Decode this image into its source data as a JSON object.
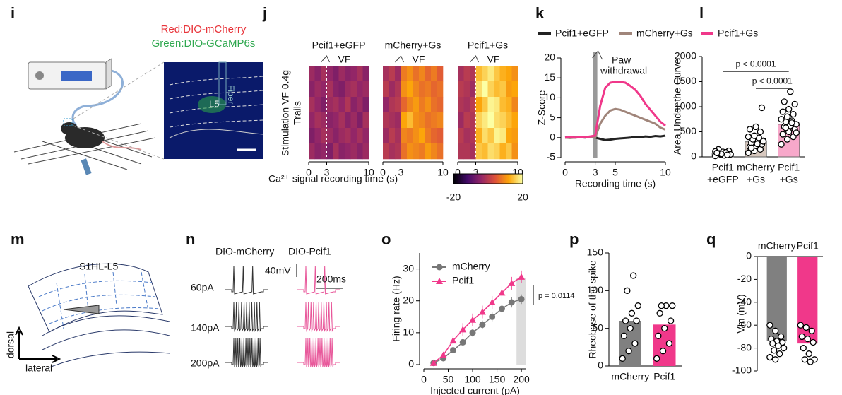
{
  "panel_labels": [
    "i",
    "j",
    "k",
    "l",
    "m",
    "n",
    "o",
    "p",
    "q"
  ],
  "panel_i": {
    "red_label": "Red:DIO-mCherry",
    "green_label": "Green:DIO-GCaMP6s",
    "fiber": "Fiber",
    "layer": "L5"
  },
  "panel_m": {
    "region": "S1HL-L5",
    "dorsal": "dorsal",
    "lateral": "lateral"
  },
  "panel_n": {
    "columns": [
      "DIO-mCherry",
      "DIO-Pcif1"
    ],
    "currents": [
      "60pA",
      "140pA",
      "200pA"
    ],
    "scale_v": "40mV",
    "scale_t": "200ms"
  },
  "chart_data": [
    {
      "type": "heatmap",
      "ylabel": [
        "Stimulation  VF 0.4g",
        "Trails"
      ],
      "xlabel": "Ca²⁺ signal recording time (s)",
      "marker": "VF",
      "xlim": [
        0,
        10
      ],
      "xticks": [
        0,
        3,
        10
      ],
      "zlim": [
        -20,
        20
      ],
      "colorbar_ticks": [
        -20,
        20
      ],
      "panels": [
        {
          "title": "Pcif1+eGFP",
          "z": [
            [
              -3,
              -5,
              -2,
              -4,
              -6,
              -3,
              -5,
              -4,
              -2,
              -5
            ],
            [
              -5,
              -3,
              -4,
              -2,
              -5,
              -6,
              -3,
              -2,
              -4,
              -3
            ],
            [
              -2,
              -4,
              -6,
              -3,
              -2,
              -4,
              -1,
              -5,
              -3,
              -6
            ],
            [
              -4,
              -2,
              -3,
              -5,
              -4,
              -2,
              -5,
              -3,
              -6,
              -2
            ],
            [
              -6,
              -4,
              -2,
              -3,
              -5,
              -3,
              -2,
              -4,
              -2,
              -4
            ],
            [
              -3,
              -5,
              -4,
              -6,
              -2,
              -5,
              -4,
              -3,
              -5,
              -3
            ]
          ]
        },
        {
          "title": "mCherry+Gs",
          "z": [
            [
              -2,
              0,
              -3,
              8,
              10,
              7,
              9,
              6,
              8,
              5
            ],
            [
              0,
              -3,
              -1,
              10,
              12,
              9,
              7,
              8,
              6,
              7
            ],
            [
              -4,
              -1,
              0,
              6,
              9,
              11,
              8,
              10,
              7,
              6
            ],
            [
              -1,
              -2,
              -3,
              12,
              14,
              10,
              9,
              7,
              8,
              9
            ],
            [
              -3,
              0,
              -2,
              9,
              8,
              10,
              12,
              8,
              6,
              5
            ],
            [
              0,
              -2,
              -1,
              7,
              10,
              9,
              8,
              11,
              9,
              7
            ]
          ]
        },
        {
          "title": "Pcif1+Gs",
          "z": [
            [
              -2,
              0,
              -1,
              14,
              16,
              18,
              15,
              13,
              12,
              10
            ],
            [
              0,
              -1,
              -3,
              17,
              20,
              16,
              14,
              15,
              11,
              12
            ],
            [
              -1,
              -2,
              0,
              12,
              15,
              19,
              18,
              14,
              13,
              9
            ],
            [
              -3,
              0,
              -1,
              16,
              18,
              20,
              17,
              16,
              14,
              12
            ],
            [
              0,
              -2,
              -1,
              13,
              17,
              15,
              19,
              18,
              12,
              11
            ],
            [
              -1,
              -1,
              -2,
              15,
              14,
              17,
              16,
              13,
              15,
              10
            ]
          ]
        }
      ]
    },
    {
      "type": "line",
      "ylabel": "Z-Score",
      "xlabel": "Recording time (s)",
      "annotation": [
        "Paw",
        "withdrawal"
      ],
      "stimulus": 3,
      "xlim": [
        0,
        10
      ],
      "xticks": [
        0,
        3,
        5,
        10
      ],
      "ylim": [
        -5,
        20
      ],
      "yticks": [
        -5,
        0,
        5,
        10,
        15,
        20
      ],
      "x": [
        0,
        0.5,
        1,
        1.5,
        2,
        2.5,
        3,
        3.5,
        4,
        4.5,
        5,
        5.5,
        6,
        6.5,
        7,
        7.5,
        8,
        8.5,
        9,
        9.5,
        10
      ],
      "series": [
        {
          "name": "Pcif1+eGFP",
          "color": "#222222",
          "values": [
            0,
            0.1,
            0,
            0.1,
            0,
            0.2,
            0,
            -0.3,
            -0.6,
            -0.5,
            -0.3,
            -0.2,
            -0.1,
            0,
            0.2,
            0.1,
            0.3,
            0.2,
            0.4,
            0.3,
            0.5
          ]
        },
        {
          "name": "mCherry+Gs",
          "color": "#a0857a",
          "values": [
            0,
            -0.1,
            0,
            0.2,
            0.1,
            0.2,
            0,
            3.5,
            5.5,
            6.8,
            7.2,
            7,
            6.5,
            6,
            5.5,
            5,
            4.5,
            4,
            3.5,
            2.5,
            2
          ]
        },
        {
          "name": "Pcif1+Gs",
          "color": "#f0388a",
          "values": [
            0,
            0.1,
            0,
            0.2,
            0.1,
            0.3,
            0.5,
            8,
            12.5,
            13.8,
            14,
            14,
            13.8,
            13,
            12,
            10.5,
            8.5,
            7,
            5.5,
            4,
            3
          ]
        }
      ]
    },
    {
      "type": "bar",
      "ylabel": "Area Under the Curve",
      "categories": [
        [
          "Pcif1",
          "+eGFP"
        ],
        [
          "mCherry",
          "+Gs"
        ],
        [
          "Pcif1",
          "+Gs"
        ]
      ],
      "colors": [
        "#dddddd",
        "#d7c8bf",
        "#f7a8ca"
      ],
      "values": [
        70,
        300,
        650
      ],
      "points": [
        [
          20,
          40,
          60,
          80,
          100,
          120,
          150,
          30,
          50,
          70,
          90,
          110,
          60,
          40,
          80
        ],
        [
          80,
          120,
          150,
          200,
          220,
          250,
          280,
          300,
          320,
          350,
          380,
          400,
          420,
          500,
          550,
          600,
          980,
          180,
          260,
          310
        ],
        [
          250,
          350,
          400,
          450,
          500,
          550,
          600,
          620,
          650,
          700,
          720,
          750,
          800,
          850,
          900,
          950,
          1050,
          1100,
          1300,
          480,
          580,
          680
        ]
      ],
      "ylim": [
        0,
        2000
      ],
      "yticks": [
        0,
        500,
        1000,
        1500,
        2000
      ],
      "annotations": [
        "p < 0.0001",
        "p < 0.0001"
      ]
    },
    {
      "type": "line",
      "ylabel": "Firing rate (Hz)",
      "xlabel": "Injected current (pA)",
      "annotation": "p = 0.0114",
      "highlight": [
        190,
        210
      ],
      "xlim": [
        0,
        210
      ],
      "xticks": [
        0,
        50,
        100,
        150,
        200
      ],
      "ylim": [
        0,
        35
      ],
      "yticks": [
        0,
        10,
        20,
        30
      ],
      "x": [
        20,
        40,
        60,
        80,
        100,
        120,
        140,
        160,
        180,
        200
      ],
      "series": [
        {
          "name": "mCherry",
          "color": "#777777",
          "marker": "circle",
          "values": [
            0.5,
            2,
            4.5,
            7,
            10,
            12.5,
            15,
            17.5,
            19.5,
            20.5
          ],
          "errors": [
            0.2,
            0.5,
            0.8,
            1,
            1.2,
            1.3,
            1.4,
            1.5,
            1.6,
            1.5
          ]
        },
        {
          "name": "Pcif1",
          "color": "#f0388a",
          "marker": "triangle",
          "values": [
            0.5,
            3,
            7.5,
            11,
            14,
            16.5,
            19.5,
            22.5,
            25.5,
            27.5
          ],
          "errors": [
            0.3,
            0.8,
            1.5,
            2,
            2,
            2,
            2,
            2,
            2,
            2
          ]
        }
      ]
    },
    {
      "type": "bar",
      "ylabel": "Rheobase of the spike",
      "categories": [
        [
          "mCherry"
        ],
        [
          "Pcif1"
        ]
      ],
      "colors": [
        "#808080",
        "#f0388a"
      ],
      "values": [
        60,
        55
      ],
      "points": [
        [
          10,
          20,
          30,
          40,
          50,
          60,
          60,
          70,
          80,
          100,
          120
        ],
        [
          10,
          20,
          30,
          40,
          50,
          60,
          70,
          80,
          80,
          80
        ]
      ],
      "ylim": [
        0,
        150
      ],
      "yticks": [
        0,
        50,
        100,
        150
      ]
    },
    {
      "type": "bar",
      "ylabel": "Vm (mV)",
      "categories": [
        [
          "mCherry"
        ],
        [
          "Pcif1"
        ]
      ],
      "colors": [
        "#808080",
        "#f0388a"
      ],
      "values": [
        -74,
        -76
      ],
      "points": [
        [
          -60,
          -65,
          -70,
          -72,
          -74,
          -75,
          -76,
          -78,
          -80,
          -82,
          -85,
          -88,
          -90
        ],
        [
          -60,
          -62,
          -65,
          -70,
          -72,
          -75,
          -80,
          -85,
          -90,
          -90,
          -92
        ]
      ],
      "ylim": [
        -100,
        0
      ],
      "yticks": [
        0,
        -20,
        -40,
        -60,
        -80,
        -100
      ]
    }
  ]
}
